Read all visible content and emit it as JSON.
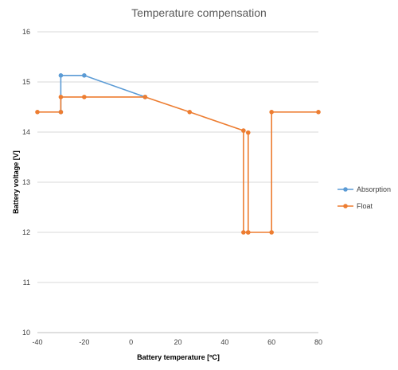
{
  "chart_data": {
    "type": "line",
    "title": "Temperature compensation",
    "xlabel": "Battery temperature [ºC]",
    "ylabel": "Battery voltage [V]",
    "xlim": [
      -40,
      80
    ],
    "ylim": [
      10,
      16
    ],
    "xticks": [
      "-40",
      "-20",
      "0",
      "20",
      "40",
      "60",
      "80"
    ],
    "yticks": [
      "10",
      "11",
      "12",
      "13",
      "14",
      "15",
      "16"
    ],
    "xtick_values": [
      -40,
      -20,
      0,
      20,
      40,
      60,
      80
    ],
    "ytick_values": [
      10,
      11,
      12,
      13,
      14,
      15,
      16
    ],
    "grid": "horizontal",
    "legend_position": "right",
    "series": [
      {
        "name": "Absorption",
        "color": "#5B9BD5",
        "points": [
          {
            "x": -30,
            "y": 14.4
          },
          {
            "x": -30,
            "y": 15.13
          },
          {
            "x": -20,
            "y": 15.13
          },
          {
            "x": 6,
            "y": 14.7
          }
        ]
      },
      {
        "name": "Float",
        "color": "#ED7D31",
        "points": [
          {
            "x": -40,
            "y": 14.4
          },
          {
            "x": -30,
            "y": 14.4
          },
          {
            "x": -30,
            "y": 14.7
          },
          {
            "x": -20,
            "y": 14.7
          },
          {
            "x": 6,
            "y": 14.7
          },
          {
            "x": 25,
            "y": 14.4
          },
          {
            "x": 48,
            "y": 14.03
          },
          {
            "x": 48,
            "y": 12.0
          },
          {
            "x": 50,
            "y": 12.0
          },
          {
            "x": 50,
            "y": 13.99
          },
          {
            "x": 50,
            "y": 12.0
          },
          {
            "x": 60,
            "y": 12.0
          },
          {
            "x": 60,
            "y": 14.4
          },
          {
            "x": 80,
            "y": 14.4
          }
        ]
      }
    ]
  }
}
